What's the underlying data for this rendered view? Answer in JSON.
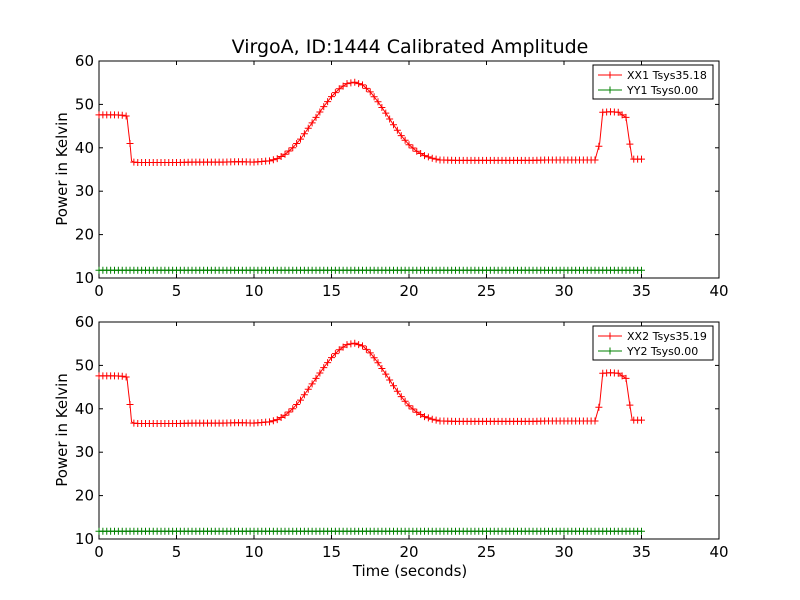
{
  "chart_data": {
    "title": "VirgoA, ID:1444 Calibrated Amplitude",
    "xlabel": "Time (seconds)",
    "panels": [
      {
        "type": "line",
        "ylabel": "Power in Kelvin",
        "xlim": [
          0,
          40
        ],
        "ylim": [
          10,
          60
        ],
        "xticks": [
          "0",
          "5",
          "10",
          "15",
          "20",
          "25",
          "30",
          "35",
          "40"
        ],
        "yticks": [
          "10",
          "20",
          "30",
          "40",
          "50",
          "60"
        ],
        "legend_position": "top-right",
        "series": [
          {
            "name": "XX1 Tsys35.18",
            "color": "#ff0000",
            "marker": "+",
            "x": [
              0,
              0.5,
              1,
              1.5,
              1.8,
              1.9,
              2.0,
              2.1,
              2.3,
              3,
              4,
              5,
              6,
              7,
              8,
              9,
              10,
              11,
              11.5,
              12,
              12.5,
              13,
              13.5,
              14,
              14.5,
              15,
              15.5,
              16,
              16.5,
              17,
              17.5,
              18,
              18.5,
              19,
              19.5,
              20,
              20.5,
              21,
              21.5,
              22,
              23,
              24,
              25,
              26,
              27,
              28,
              29,
              30,
              31,
              32,
              32.3,
              32.5,
              33,
              33.5,
              34,
              34.2,
              34.4,
              34.6,
              35
            ],
            "y": [
              47.6,
              47.6,
              47.6,
              47.5,
              47.3,
              44.0,
              41.0,
              37.0,
              36.6,
              36.6,
              36.6,
              36.6,
              36.7,
              36.7,
              36.7,
              36.8,
              36.7,
              37.0,
              37.5,
              38.5,
              40.0,
              42.0,
              44.5,
              47.0,
              49.5,
              51.8,
              53.6,
              54.8,
              55.1,
              54.5,
              52.9,
              50.6,
              48.0,
              45.3,
              42.8,
              40.7,
              39.2,
              38.2,
              37.6,
              37.2,
              37.1,
              37.1,
              37.1,
              37.1,
              37.1,
              37.1,
              37.2,
              37.2,
              37.2,
              37.2,
              41.0,
              48.2,
              48.3,
              48.2,
              47.0,
              42.0,
              37.4,
              37.4,
              37.4
            ]
          },
          {
            "name": "YY1 Tsys0.00",
            "color": "#008000",
            "marker": "+",
            "x": [
              0,
              35
            ],
            "y": [
              11.8,
              11.8
            ]
          }
        ]
      },
      {
        "type": "line",
        "ylabel": "Power in Kelvin",
        "xlim": [
          0,
          40
        ],
        "ylim": [
          10,
          60
        ],
        "xticks": [
          "0",
          "5",
          "10",
          "15",
          "20",
          "25",
          "30",
          "35",
          "40"
        ],
        "yticks": [
          "10",
          "20",
          "30",
          "40",
          "50",
          "60"
        ],
        "legend_position": "top-right",
        "series": [
          {
            "name": "XX2 Tsys35.19",
            "color": "#ff0000",
            "marker": "+",
            "x": [
              0,
              0.5,
              1,
              1.5,
              1.8,
              1.9,
              2.0,
              2.1,
              2.3,
              3,
              4,
              5,
              6,
              7,
              8,
              9,
              10,
              11,
              11.5,
              12,
              12.5,
              13,
              13.5,
              14,
              14.5,
              15,
              15.5,
              16,
              16.5,
              17,
              17.5,
              18,
              18.5,
              19,
              19.5,
              20,
              20.5,
              21,
              21.5,
              22,
              23,
              24,
              25,
              26,
              27,
              28,
              29,
              30,
              31,
              32,
              32.3,
              32.5,
              33,
              33.5,
              34,
              34.2,
              34.4,
              34.6,
              35
            ],
            "y": [
              47.6,
              47.6,
              47.6,
              47.5,
              47.3,
              44.0,
              41.0,
              37.0,
              36.6,
              36.6,
              36.6,
              36.6,
              36.7,
              36.7,
              36.7,
              36.8,
              36.7,
              37.0,
              37.5,
              38.5,
              40.0,
              42.0,
              44.5,
              47.0,
              49.5,
              51.8,
              53.6,
              54.8,
              55.1,
              54.5,
              52.9,
              50.6,
              48.0,
              45.3,
              42.8,
              40.7,
              39.2,
              38.2,
              37.6,
              37.2,
              37.1,
              37.1,
              37.1,
              37.1,
              37.1,
              37.1,
              37.2,
              37.2,
              37.2,
              37.2,
              41.0,
              48.2,
              48.3,
              48.2,
              47.0,
              42.0,
              37.4,
              37.4,
              37.4
            ]
          },
          {
            "name": "YY2 Tsys0.00",
            "color": "#008000",
            "marker": "+",
            "x": [
              0,
              35
            ],
            "y": [
              11.8,
              11.8
            ]
          }
        ]
      }
    ]
  }
}
